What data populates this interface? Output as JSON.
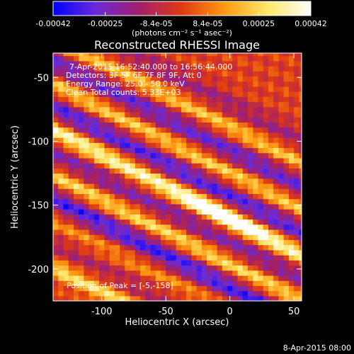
{
  "chart_data": {
    "type": "heatmap",
    "title": "Reconstructed RHESSI Image",
    "xlabel": "Heliocentric X (arcsec)",
    "ylabel": "Heliocentric Y (arcsec)",
    "xlim": [
      -138,
      56
    ],
    "ylim": [
      -225,
      -31
    ],
    "xticks": [
      {
        "value": -100,
        "label": "-100"
      },
      {
        "value": -50,
        "label": "-50"
      },
      {
        "value": 0,
        "label": "0"
      },
      {
        "value": 50,
        "label": "50"
      }
    ],
    "yticks": [
      {
        "value": -50,
        "label": "-50"
      },
      {
        "value": -100,
        "label": "-100"
      },
      {
        "value": -150,
        "label": "-150"
      },
      {
        "value": -200,
        "label": "-200"
      }
    ],
    "colorbar": {
      "label": "(photons cm⁻² s⁻¹ asec⁻²)",
      "range": [
        -0.00042,
        0.00042
      ],
      "ticks": [
        {
          "value": -0.00042,
          "label": "-0.00042"
        },
        {
          "value": -0.00025,
          "label": "-0.00025"
        },
        {
          "value": -8.4e-05,
          "label": "-8.4e-05"
        },
        {
          "value": 8.4e-05,
          "label": "8.4e-05"
        },
        {
          "value": 0.00025,
          "label": "0.00025"
        },
        {
          "value": 0.00042,
          "label": "0.00042"
        }
      ],
      "colors": [
        "#0000ff",
        "#6a2bd8",
        "#a21f6a",
        "#e03a12",
        "#ff9a12",
        "#ffe86a",
        "#ffffff"
      ]
    },
    "annotations": [
      "7-Apr-2015 16:52:40.000 to 16:56:44.000",
      "Detectors: 3F 5F 6F 7F 8F 9F, Att 0",
      "Energy Range: 25.0 - 50.0 keV",
      "Clean     Total counts: 5.33E+03"
    ],
    "peak_label": "Position of Peak = [-5,-158]",
    "peak": {
      "x": -5,
      "y": -158,
      "value": 0.00042
    },
    "stripes": [
      {
        "value": 0.00028,
        "sigma": 4.5
      },
      {
        "value": -0.0001,
        "sigma": 6.0
      },
      {
        "value": 0.00012,
        "sigma": 4.5
      },
      {
        "value": -0.00032,
        "sigma": 6.0
      },
      {
        "value": 0.00026,
        "sigma": 4.5
      },
      {
        "value": -0.0002,
        "sigma": 6.0
      },
      {
        "value": 0.00036,
        "sigma": 5.0
      },
      {
        "value": -0.0003,
        "sigma": 6.0
      },
      {
        "value": 0.00024,
        "sigma": 4.5
      },
      {
        "value": -0.00026,
        "sigma": 6.0
      },
      {
        "value": 0.00022,
        "sigma": 4.5
      },
      {
        "value": -0.00014,
        "sigma": 6.0
      }
    ],
    "grid": false
  },
  "footer": {
    "date": "8-Apr-2015 08:00"
  }
}
